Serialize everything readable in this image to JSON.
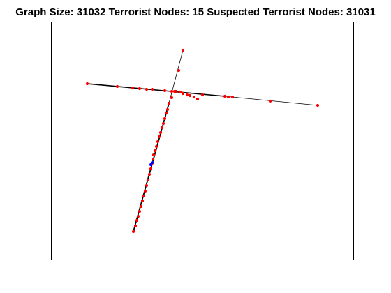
{
  "figure": {
    "title": "Graph Size:  31032 Terrorist Nodes:  15 Suspected Terrorist Nodes:  31031"
  },
  "colors": {
    "node": "#ff0000",
    "terrorist_node": "#0000ff",
    "edge": "#000000",
    "axes": "#000000",
    "background": "#ffffff"
  },
  "chart_data": {
    "type": "scatter",
    "title": "Graph Size:  31032 Terrorist Nodes:  15 Suspected Terrorist Nodes:  31031",
    "graph_size": 31032,
    "terrorist_nodes": 15,
    "suspected_terrorist_nodes": 31031,
    "grid": false,
    "axis_ticks": false,
    "x": [
      125,
      168,
      190,
      200,
      210,
      218,
      236,
      246,
      252,
      258,
      262,
      268,
      272,
      278,
      283,
      290,
      322,
      327,
      333,
      387,
      455,
      262,
      256,
      250,
      246,
      242,
      240,
      238,
      236,
      234,
      232,
      230,
      228,
      226,
      224,
      222,
      220,
      219,
      218,
      216,
      214,
      212,
      210,
      208,
      206,
      204,
      202,
      200,
      198,
      196,
      194,
      192,
      191
    ],
    "y": [
      120,
      124,
      126,
      127,
      128,
      128,
      130,
      131,
      131,
      132,
      134,
      136,
      137,
      139,
      142,
      136,
      138,
      139,
      139,
      145,
      151,
      72,
      101,
      131,
      140,
      148,
      157,
      162,
      170,
      177,
      183,
      190,
      196,
      203,
      210,
      216,
      222,
      228,
      234,
      242,
      250,
      258,
      266,
      274,
      281,
      288,
      296,
      303,
      310,
      316,
      324,
      331,
      332
    ],
    "terrorist_x": [
      218,
      216
    ],
    "terrorist_y": [
      233,
      236
    ],
    "edges_horizontal": [
      [
        125,
        120
      ],
      [
        455,
        151
      ]
    ],
    "edges_vertical": [
      [
        262,
        72
      ],
      [
        191,
        332
      ]
    ]
  }
}
